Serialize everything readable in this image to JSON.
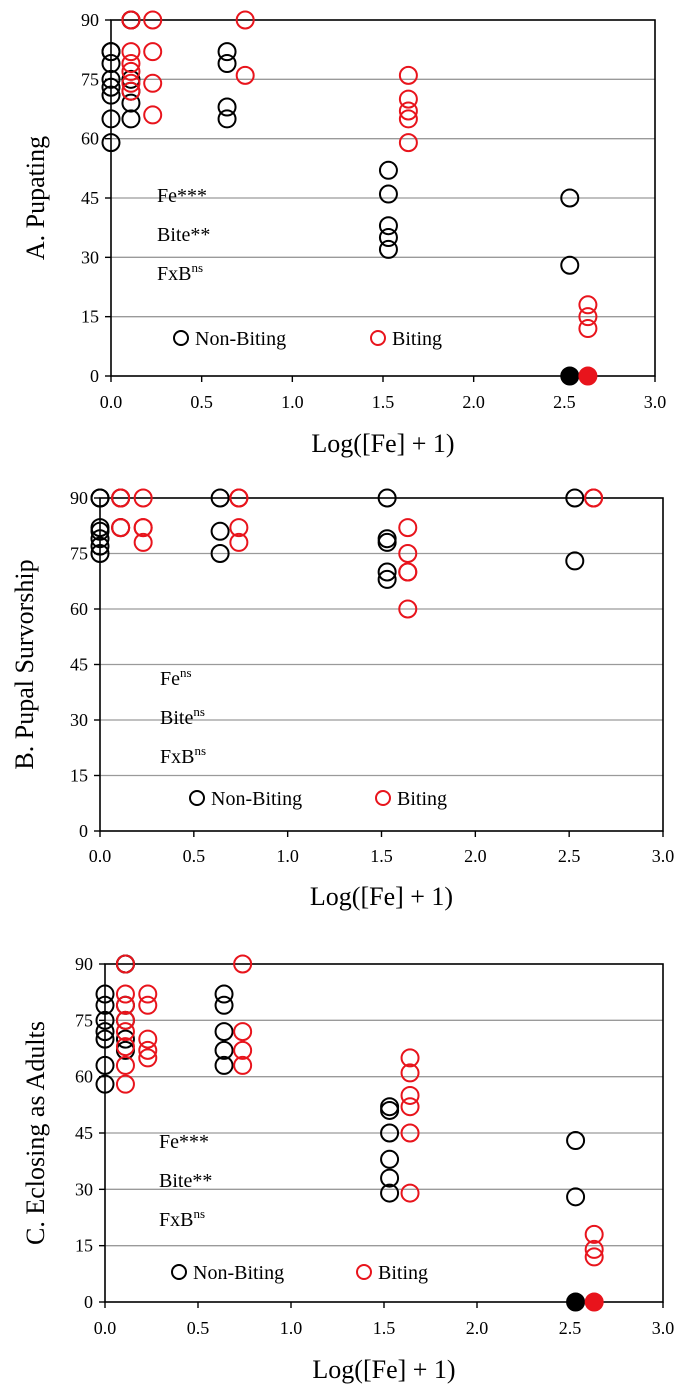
{
  "colors": {
    "non_biting": "#000000",
    "biting": "#e8141c",
    "grid": "#9a9a9a",
    "axis": "#000000"
  },
  "chart_data": [
    {
      "type": "scatter",
      "ylabel": "A. Pupating",
      "xlabel": "Log([Fe] + 1)",
      "xlim": [
        0,
        3
      ],
      "ylim": [
        0,
        90
      ],
      "xticks": [
        "0.0",
        "0.5",
        "1.0",
        "1.5",
        "2.0",
        "2.5",
        "3.0"
      ],
      "yticks": [
        "0",
        "15",
        "30",
        "45",
        "60",
        "75",
        "90"
      ],
      "grid": "horizontal",
      "stats": [
        {
          "base": "Fe",
          "sup": "***"
        },
        {
          "base": "Bite",
          "sup": "**"
        },
        {
          "base": "FxB",
          "sup": "ns"
        }
      ],
      "legend": {
        "placement": "bottom-left",
        "entries": [
          "Non-Biting",
          "Biting"
        ]
      },
      "series": [
        {
          "name": "Non-Biting",
          "points": [
            [
              0.0,
              82
            ],
            [
              0.0,
              82
            ],
            [
              0.0,
              79
            ],
            [
              0.0,
              75
            ],
            [
              0.0,
              73
            ],
            [
              0.0,
              71
            ],
            [
              0.0,
              65
            ],
            [
              0.0,
              59
            ],
            [
              0.11,
              90
            ],
            [
              0.11,
              90
            ],
            [
              0.11,
              75
            ],
            [
              0.11,
              72
            ],
            [
              0.11,
              69
            ],
            [
              0.11,
              65
            ],
            [
              0.64,
              82
            ],
            [
              0.64,
              79
            ],
            [
              0.64,
              68
            ],
            [
              0.64,
              65
            ],
            [
              1.53,
              52
            ],
            [
              1.53,
              46
            ],
            [
              1.53,
              38
            ],
            [
              1.53,
              35
            ],
            [
              1.53,
              32
            ],
            [
              2.53,
              45
            ],
            [
              2.53,
              28
            ]
          ],
          "filled_points": [
            [
              2.53,
              0
            ]
          ]
        },
        {
          "name": "Biting",
          "points": [
            [
              0.11,
              90
            ],
            [
              0.11,
              90
            ],
            [
              0.11,
              82
            ],
            [
              0.11,
              79
            ],
            [
              0.11,
              77
            ],
            [
              0.11,
              74
            ],
            [
              0.11,
              72
            ],
            [
              0.23,
              90
            ],
            [
              0.23,
              82
            ],
            [
              0.23,
              74
            ],
            [
              0.23,
              66
            ],
            [
              0.74,
              90
            ],
            [
              0.74,
              76
            ],
            [
              1.64,
              76
            ],
            [
              1.64,
              70
            ],
            [
              1.64,
              67
            ],
            [
              1.64,
              65
            ],
            [
              1.64,
              59
            ],
            [
              2.63,
              18
            ],
            [
              2.63,
              15
            ],
            [
              2.63,
              12
            ]
          ],
          "filled_points": [
            [
              2.63,
              0
            ]
          ]
        }
      ]
    },
    {
      "type": "scatter",
      "ylabel": "B. Pupal Survorship",
      "xlabel": "Log([Fe] + 1)",
      "xlim": [
        0,
        3
      ],
      "ylim": [
        0,
        90
      ],
      "xticks": [
        "0.0",
        "0.5",
        "1.0",
        "1.5",
        "2.0",
        "2.5",
        "3.0"
      ],
      "yticks": [
        "0",
        "15",
        "30",
        "45",
        "60",
        "75",
        "90"
      ],
      "grid": "horizontal",
      "stats": [
        {
          "base": "Fe",
          "sup": "ns"
        },
        {
          "base": "Bite",
          "sup": "ns"
        },
        {
          "base": "FxB",
          "sup": "ns"
        }
      ],
      "legend": {
        "placement": "bottom-left",
        "entries": [
          "Non-Biting",
          "Biting"
        ]
      },
      "series": [
        {
          "name": "Non-Biting",
          "points": [
            [
              0.0,
              90
            ],
            [
              0.0,
              90
            ],
            [
              0.0,
              82
            ],
            [
              0.0,
              81
            ],
            [
              0.0,
              79
            ],
            [
              0.0,
              77
            ],
            [
              0.0,
              75
            ],
            [
              0.11,
              90
            ],
            [
              0.11,
              82
            ],
            [
              0.64,
              90
            ],
            [
              0.64,
              81
            ],
            [
              0.64,
              75
            ],
            [
              1.53,
              90
            ],
            [
              1.53,
              79
            ],
            [
              1.53,
              78
            ],
            [
              1.53,
              70
            ],
            [
              1.53,
              68
            ],
            [
              2.53,
              90
            ],
            [
              2.53,
              73
            ]
          ],
          "filled_points": []
        },
        {
          "name": "Biting",
          "points": [
            [
              0.11,
              90
            ],
            [
              0.11,
              90
            ],
            [
              0.11,
              82
            ],
            [
              0.11,
              82
            ],
            [
              0.23,
              90
            ],
            [
              0.23,
              82
            ],
            [
              0.23,
              82
            ],
            [
              0.23,
              78
            ],
            [
              0.74,
              90
            ],
            [
              0.74,
              90
            ],
            [
              0.74,
              82
            ],
            [
              0.74,
              78
            ],
            [
              1.64,
              82
            ],
            [
              1.64,
              75
            ],
            [
              1.64,
              70
            ],
            [
              1.64,
              70
            ],
            [
              1.64,
              60
            ],
            [
              2.63,
              90
            ],
            [
              2.63,
              90
            ]
          ],
          "filled_points": []
        }
      ]
    },
    {
      "type": "scatter",
      "ylabel": "C. Eclosing as Adults",
      "xlabel": "Log([Fe] + 1)",
      "xlim": [
        0,
        3
      ],
      "ylim": [
        0,
        90
      ],
      "xticks": [
        "0.0",
        "0.5",
        "1.0",
        "1.5",
        "2.0",
        "2.5",
        "3.0"
      ],
      "yticks": [
        "0",
        "15",
        "30",
        "45",
        "60",
        "75",
        "90"
      ],
      "grid": "horizontal",
      "stats": [
        {
          "base": "Fe",
          "sup": "***"
        },
        {
          "base": "Bite",
          "sup": "**"
        },
        {
          "base": "FxB",
          "sup": "ns"
        }
      ],
      "legend": {
        "placement": "bottom-left",
        "entries": [
          "Non-Biting",
          "Biting"
        ]
      },
      "series": [
        {
          "name": "Non-Biting",
          "points": [
            [
              0.0,
              82
            ],
            [
              0.0,
              79
            ],
            [
              0.0,
              75
            ],
            [
              0.0,
              72
            ],
            [
              0.0,
              70
            ],
            [
              0.0,
              63
            ],
            [
              0.0,
              58
            ],
            [
              0.11,
              90
            ],
            [
              0.11,
              90
            ],
            [
              0.11,
              79
            ],
            [
              0.11,
              75
            ],
            [
              0.11,
              70
            ],
            [
              0.11,
              67
            ],
            [
              0.64,
              82
            ],
            [
              0.64,
              79
            ],
            [
              0.64,
              72
            ],
            [
              0.64,
              67
            ],
            [
              0.64,
              63
            ],
            [
              1.53,
              52
            ],
            [
              1.53,
              51
            ],
            [
              1.53,
              45
            ],
            [
              1.53,
              38
            ],
            [
              1.53,
              33
            ],
            [
              1.53,
              29
            ],
            [
              2.53,
              43
            ],
            [
              2.53,
              28
            ]
          ],
          "filled_points": [
            [
              2.53,
              0
            ]
          ]
        },
        {
          "name": "Biting",
          "points": [
            [
              0.11,
              90
            ],
            [
              0.11,
              82
            ],
            [
              0.11,
              79
            ],
            [
              0.11,
              75
            ],
            [
              0.11,
              72
            ],
            [
              0.11,
              68
            ],
            [
              0.11,
              63
            ],
            [
              0.11,
              58
            ],
            [
              0.23,
              82
            ],
            [
              0.23,
              79
            ],
            [
              0.23,
              70
            ],
            [
              0.23,
              67
            ],
            [
              0.23,
              65
            ],
            [
              0.74,
              90
            ],
            [
              0.74,
              72
            ],
            [
              0.74,
              67
            ],
            [
              0.74,
              63
            ],
            [
              1.64,
              65
            ],
            [
              1.64,
              61
            ],
            [
              1.64,
              55
            ],
            [
              1.64,
              52
            ],
            [
              1.64,
              45
            ],
            [
              1.64,
              29
            ],
            [
              2.63,
              18
            ],
            [
              2.63,
              14
            ],
            [
              2.63,
              12
            ]
          ],
          "filled_points": [
            [
              2.63,
              0
            ]
          ]
        }
      ]
    }
  ]
}
